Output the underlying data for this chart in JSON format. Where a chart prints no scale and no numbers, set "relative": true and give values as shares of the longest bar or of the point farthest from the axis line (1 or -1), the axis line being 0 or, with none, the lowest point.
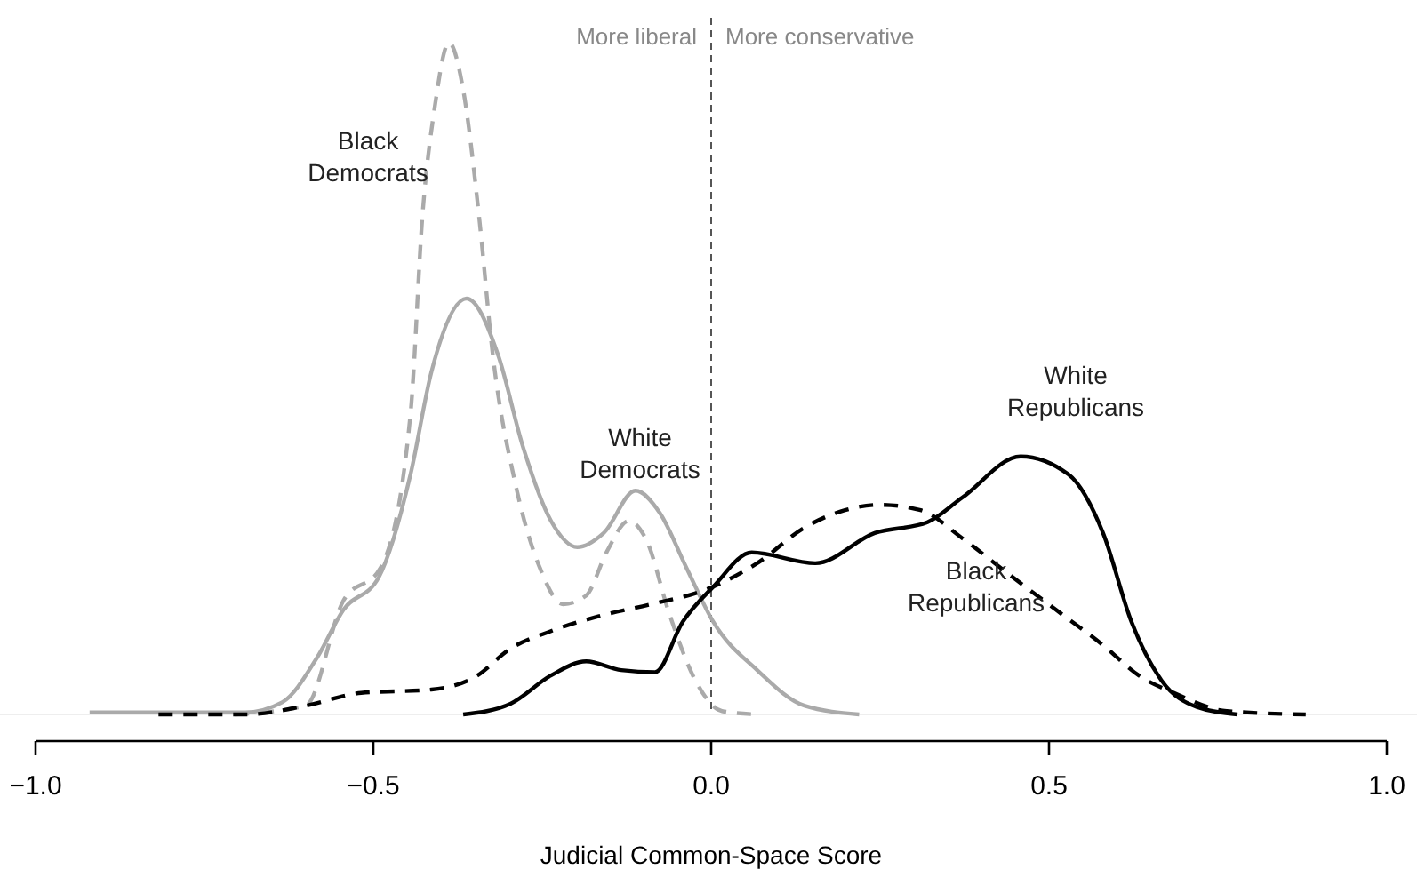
{
  "chart_data": {
    "type": "line",
    "relative": true,
    "xlabel": "Judicial Common-Space Score",
    "xlim": [
      -1,
      1
    ],
    "xticks": [
      {
        "value": -1,
        "label": "−1.0"
      },
      {
        "value": -0.5,
        "label": "−0.5"
      },
      {
        "value": 0,
        "label": "0.0"
      },
      {
        "value": 0.5,
        "label": "0.5"
      },
      {
        "value": 1,
        "label": "1.0"
      }
    ],
    "tick_labels": "x",
    "ref_lines": [
      {
        "axis": "x",
        "value": 0,
        "color": "#555555",
        "line_style": "dashed"
      }
    ],
    "annotations": [
      "More liberal",
      "More conservative"
    ],
    "series": [
      {
        "name": "Black\nDemocrats",
        "color": "#aaaaaa",
        "line_style": "dashed",
        "x": [
          -0.705,
          -0.6,
          -0.544,
          -0.49,
          -0.445,
          -0.427,
          -0.409,
          -0.388,
          -0.367,
          -0.344,
          -0.323,
          -0.289,
          -0.253,
          -0.219,
          -0.185,
          -0.154,
          -0.122,
          -0.096,
          -0.062,
          -0.023,
          0.016,
          0.07
        ],
        "values": [
          0,
          0.013,
          0.17,
          0.217,
          0.447,
          0.746,
          0.905,
          1.0,
          0.93,
          0.746,
          0.534,
          0.34,
          0.217,
          0.164,
          0.177,
          0.243,
          0.288,
          0.26,
          0.15,
          0.05,
          0.005,
          0
        ]
      },
      {
        "name": "White\nDemocrats",
        "color": "#aaaaaa",
        "line_style": "solid",
        "x": [
          -0.92,
          -0.69,
          -0.635,
          -0.583,
          -0.544,
          -0.492,
          -0.445,
          -0.414,
          -0.362,
          -0.315,
          -0.279,
          -0.237,
          -0.198,
          -0.159,
          -0.112,
          -0.076,
          -0.036,
          0.003,
          0.068,
          0.138,
          0.219
        ],
        "values": [
          0.003,
          0.003,
          0.018,
          0.085,
          0.156,
          0.204,
          0.357,
          0.51,
          0.619,
          0.534,
          0.4,
          0.288,
          0.249,
          0.27,
          0.333,
          0.3,
          0.217,
          0.138,
          0.066,
          0.013,
          0
        ]
      },
      {
        "name": "Black\nRepublicans",
        "color": "#000000",
        "line_style": "dashed",
        "x": [
          -0.818,
          -0.688,
          -0.6,
          -0.518,
          -0.414,
          -0.349,
          -0.297,
          -0.237,
          -0.167,
          -0.089,
          -0.01,
          0.068,
          0.138,
          0.198,
          0.25,
          0.31,
          0.372,
          0.44,
          0.51,
          0.58,
          0.633,
          0.685,
          0.763,
          0.88
        ],
        "values": [
          0,
          0,
          0.013,
          0.032,
          0.037,
          0.056,
          0.098,
          0.124,
          0.146,
          0.164,
          0.185,
          0.225,
          0.278,
          0.304,
          0.312,
          0.304,
          0.262,
          0.209,
          0.156,
          0.103,
          0.058,
          0.032,
          0.005,
          0
        ]
      },
      {
        "name": "White\nRepublicans",
        "color": "#000000",
        "line_style": "solid",
        "x": [
          -0.367,
          -0.297,
          -0.237,
          -0.185,
          -0.133,
          -0.083,
          -0.042,
          0.003,
          0.06,
          0.154,
          0.242,
          0.32,
          0.372,
          0.458,
          0.529,
          0.58,
          0.622,
          0.667,
          0.719,
          0.779
        ],
        "values": [
          0,
          0.016,
          0.058,
          0.079,
          0.066,
          0.063,
          0.138,
          0.19,
          0.241,
          0.225,
          0.27,
          0.286,
          0.323,
          0.384,
          0.357,
          0.27,
          0.138,
          0.05,
          0.011,
          0
        ]
      }
    ]
  }
}
